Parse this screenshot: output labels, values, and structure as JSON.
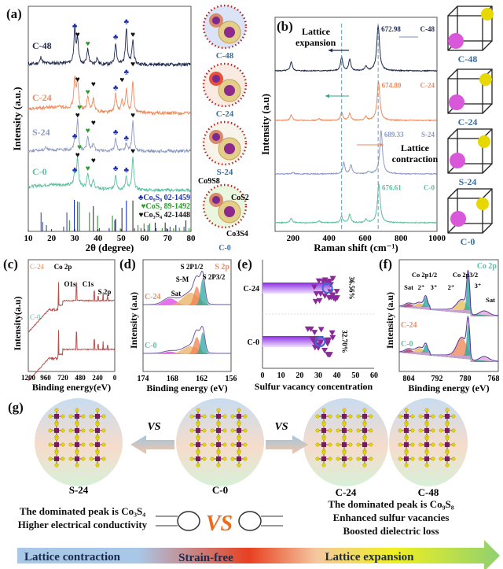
{
  "panels": {
    "a": "(a)",
    "b": "(b)",
    "c": "(c)",
    "d": "(d)",
    "e": "(e)",
    "f": "(f)",
    "g": "(g)"
  },
  "colors": {
    "C-48": "#1f2a4d",
    "C-24": "#ee8a5c",
    "S-24": "#8c9bc4",
    "C-0": "#5cbfa0",
    "co9s8": "#1a2fb0",
    "cos2": "#2a9a2a",
    "co3s4": "#111111",
    "xps_survey": "#b5524f",
    "magenta": "#e040e0",
    "orange": "#f0a060",
    "teal": "#2aa8a0",
    "yellow_atom": "#e6d800",
    "pink_atom": "#d957d9"
  },
  "side_a": {
    "labels": [
      "C-48",
      "C-24",
      "S-24",
      "C-0"
    ],
    "phase_labels": [
      "Co9S8",
      "CoS2",
      "Co3S4"
    ]
  },
  "side_b": {
    "labels": [
      "C-48",
      "C-24",
      "S-24",
      "C-0"
    ]
  },
  "chart_data": [
    {
      "id": "a",
      "type": "line",
      "title": "",
      "xlabel": "2θ (degree)",
      "ylabel": "Intensity (a.u.)",
      "xlim": [
        10,
        80
      ],
      "xticks": [
        10,
        20,
        30,
        40,
        50,
        60,
        70,
        80
      ],
      "series": [
        {
          "name": "C-48",
          "offset": 3,
          "peaks": [
            [
              15.5,
              0.15
            ],
            [
              30,
              0.75
            ],
            [
              31.2,
              0.55
            ],
            [
              35.6,
              0.35
            ],
            [
              39.6,
              0.15
            ],
            [
              47.6,
              0.5
            ],
            [
              52.2,
              0.85
            ],
            [
              55.0,
              0.55
            ]
          ]
        },
        {
          "name": "C-24",
          "offset": 2,
          "peaks": [
            [
              30,
              0.75
            ],
            [
              31.2,
              0.65
            ],
            [
              35.6,
              0.35
            ],
            [
              38,
              0.3
            ],
            [
              47.6,
              0.45
            ],
            [
              50.3,
              0.3
            ],
            [
              52.2,
              0.55
            ],
            [
              55.0,
              0.75
            ]
          ]
        },
        {
          "name": "S-24",
          "offset": 1,
          "peaks": [
            [
              17.5,
              0.1
            ],
            [
              30,
              0.25
            ],
            [
              31.2,
              0.8
            ],
            [
              35.6,
              0.4
            ],
            [
              38,
              0.2
            ],
            [
              47.6,
              0.35
            ],
            [
              52.2,
              0.2
            ],
            [
              55.0,
              0.8
            ]
          ]
        },
        {
          "name": "C-0",
          "offset": 0,
          "peaks": [
            [
              30,
              0.35
            ],
            [
              31.2,
              0.75
            ],
            [
              35.6,
              0.4
            ],
            [
              38,
              0.2
            ],
            [
              47.6,
              0.4
            ],
            [
              52.2,
              0.35
            ],
            [
              55.0,
              0.85
            ]
          ]
        }
      ],
      "legend": [
        {
          "symbol": "♣",
          "text": "Co₉S₈ 02-1459",
          "color": "#1a2fb0"
        },
        {
          "symbol": "♥",
          "text": "CoS₂ 89-1492",
          "color": "#2a9a2a"
        },
        {
          "symbol": "♥",
          "text": "Co₃S₄ 42-1448",
          "color": "#111111"
        }
      ],
      "reference_lines": [
        {
          "x": 15.5,
          "h": 0.6,
          "color": "#44507a"
        },
        {
          "x": 16.2,
          "h": 0.3,
          "color": "#44507a"
        },
        {
          "x": 17.8,
          "h": 0.2,
          "color": "#44507a"
        },
        {
          "x": 25.2,
          "h": 0.15,
          "color": "#44507a"
        },
        {
          "x": 26.6,
          "h": 0.6,
          "color": "#44507a"
        },
        {
          "x": 27.7,
          "h": 0.35,
          "color": "#2a9a2a"
        },
        {
          "x": 29.8,
          "h": 1.0,
          "color": "#1a2fb0"
        },
        {
          "x": 31.2,
          "h": 0.95,
          "color": "#44507a"
        },
        {
          "x": 32.0,
          "h": 0.93,
          "color": "#2a9a2a"
        },
        {
          "x": 36.3,
          "h": 0.6,
          "color": "#2a9a2a"
        },
        {
          "x": 38.0,
          "h": 0.8,
          "color": "#333333"
        },
        {
          "x": 39.8,
          "h": 0.5,
          "color": "#2a9a2a"
        },
        {
          "x": 40.6,
          "h": 0.1,
          "color": "#44507a"
        },
        {
          "x": 44.8,
          "h": 0.1,
          "color": "#1a2fb0"
        },
        {
          "x": 46.2,
          "h": 0.5,
          "color": "#2a9a2a"
        },
        {
          "x": 47.2,
          "h": 0.35,
          "color": "#44507a"
        },
        {
          "x": 47.6,
          "h": 0.4,
          "color": "#1a2fb0"
        },
        {
          "x": 50.3,
          "h": 0.75,
          "color": "#333333"
        },
        {
          "x": 49.6,
          "h": 0.1,
          "color": "#2a9a2a"
        },
        {
          "x": 52.2,
          "h": 0.98,
          "color": "#1a2fb0"
        },
        {
          "x": 55.0,
          "h": 0.98,
          "color": "#333333"
        },
        {
          "x": 55.7,
          "h": 0.1,
          "color": "#44507a"
        },
        {
          "x": 57.2,
          "h": 0.2,
          "color": "#2a9a2a"
        },
        {
          "x": 58.5,
          "h": 0.1,
          "color": "#44507a"
        },
        {
          "x": 59.8,
          "h": 0.25,
          "color": "#2a9a2a"
        },
        {
          "x": 61.5,
          "h": 0.2,
          "color": "#44507a"
        },
        {
          "x": 62.2,
          "h": 0.25,
          "color": "#2a9a2a"
        },
        {
          "x": 64.6,
          "h": 0.28,
          "color": "#333333"
        },
        {
          "x": 65.0,
          "h": 0.1,
          "color": "#44507a"
        },
        {
          "x": 67.6,
          "h": 0.1,
          "color": "#2a9a2a"
        },
        {
          "x": 68.9,
          "h": 0.28,
          "color": "#333333"
        },
        {
          "x": 69.5,
          "h": 0.1,
          "color": "#1a2fb0"
        },
        {
          "x": 71.0,
          "h": 0.15,
          "color": "#44507a"
        },
        {
          "x": 72.5,
          "h": 0.1,
          "color": "#2a9a2a"
        },
        {
          "x": 73.5,
          "h": 0.2,
          "color": "#1a2fb0"
        },
        {
          "x": 75.0,
          "h": 0.12,
          "color": "#2a9a2a"
        },
        {
          "x": 77.0,
          "h": 0.15,
          "color": "#44507a"
        },
        {
          "x": 77.8,
          "h": 0.35,
          "color": "#333333"
        },
        {
          "x": 79.2,
          "h": 0.1,
          "color": "#2a9a2a"
        }
      ],
      "markers": [
        {
          "series": "C-48",
          "x": 30,
          "symbol": "♣",
          "color": "#1a2fb0"
        },
        {
          "series": "C-48",
          "x": 31.2,
          "symbol": "♥",
          "color": "#111111"
        },
        {
          "series": "C-48",
          "x": 35.6,
          "symbol": "♥",
          "color": "#2a9a2a"
        },
        {
          "series": "C-48",
          "x": 47.6,
          "symbol": "♣",
          "color": "#1a2fb0"
        },
        {
          "series": "C-48",
          "x": 52.2,
          "symbol": "♣",
          "color": "#1a2fb0"
        },
        {
          "series": "C-48",
          "x": 55.0,
          "symbol": "♥",
          "color": "#111111"
        },
        {
          "series": "C-24",
          "x": 31.2,
          "symbol": "♥",
          "color": "#111111"
        },
        {
          "series": "C-24",
          "x": 35.6,
          "symbol": "♥",
          "color": "#2a9a2a"
        },
        {
          "series": "C-24",
          "x": 38,
          "symbol": "♥",
          "color": "#111111"
        },
        {
          "series": "C-24",
          "x": 47.6,
          "symbol": "♣",
          "color": "#1a2fb0"
        },
        {
          "series": "C-24",
          "x": 50.3,
          "symbol": "♥",
          "color": "#111111"
        },
        {
          "series": "C-24",
          "x": 52.2,
          "symbol": "♣",
          "color": "#1a2fb0"
        },
        {
          "series": "C-24",
          "x": 55.0,
          "symbol": "♥",
          "color": "#111111"
        },
        {
          "series": "S-24",
          "x": 30,
          "symbol": "♣",
          "color": "#1a2fb0"
        },
        {
          "series": "S-24",
          "x": 31.2,
          "symbol": "♥",
          "color": "#111111"
        },
        {
          "series": "S-24",
          "x": 32,
          "symbol": "♥",
          "color": "#2a9a2a"
        },
        {
          "series": "S-24",
          "x": 35.6,
          "symbol": "♥",
          "color": "#2a9a2a"
        },
        {
          "series": "S-24",
          "x": 38,
          "symbol": "♥",
          "color": "#111111"
        },
        {
          "series": "S-24",
          "x": 47.6,
          "symbol": "♣",
          "color": "#1a2fb0"
        },
        {
          "series": "S-24",
          "x": 52.2,
          "symbol": "♣",
          "color": "#1a2fb0"
        },
        {
          "series": "S-24",
          "x": 55.0,
          "symbol": "♥",
          "color": "#111111"
        },
        {
          "series": "C-0",
          "x": 30,
          "symbol": "♣",
          "color": "#1a2fb0"
        },
        {
          "series": "C-0",
          "x": 31.2,
          "symbol": "♥",
          "color": "#111111"
        },
        {
          "series": "C-0",
          "x": 32,
          "symbol": "♥",
          "color": "#2a9a2a"
        },
        {
          "series": "C-0",
          "x": 35.6,
          "symbol": "♥",
          "color": "#2a9a2a"
        },
        {
          "series": "C-0",
          "x": 38,
          "symbol": "♥",
          "color": "#111111"
        },
        {
          "series": "C-0",
          "x": 47.6,
          "symbol": "♣",
          "color": "#1a2fb0"
        },
        {
          "series": "C-0",
          "x": 52.2,
          "symbol": "♣",
          "color": "#1a2fb0"
        },
        {
          "series": "C-0",
          "x": 55.0,
          "symbol": "♥",
          "color": "#111111"
        }
      ]
    },
    {
      "id": "b",
      "type": "line",
      "xlabel": "Raman shift (cm⁻¹)",
      "ylabel": "Intensity (a.u)",
      "xlim": [
        100,
        1000
      ],
      "xticks": [
        200,
        400,
        600,
        800,
        1000
      ],
      "dashed_lines_x": [
        470,
        672.98
      ],
      "series": [
        {
          "name": "C-48",
          "offset": 3,
          "peak_label": "672.98",
          "peaks": [
            [
              190,
              0.2
            ],
            [
              470,
              0.3
            ],
            [
              515,
              0.25
            ],
            [
              605,
              0.1
            ],
            [
              672.98,
              1.0
            ]
          ]
        },
        {
          "name": "C-24",
          "offset": 2,
          "peak_label": "674.80",
          "peaks": [
            [
              190,
              0.12
            ],
            [
              345,
              0.04
            ],
            [
              470,
              0.18
            ],
            [
              515,
              0.15
            ],
            [
              605,
              0.08
            ],
            [
              674.8,
              0.85
            ]
          ]
        },
        {
          "name": "S-24",
          "offset": 1,
          "peak_label": "689.33",
          "peaks": [
            [
              200,
              0.03
            ],
            [
              482,
              0.25
            ],
            [
              522,
              0.2
            ],
            [
              620,
              0.05
            ],
            [
              689.33,
              0.95
            ]
          ]
        },
        {
          "name": "C-0",
          "offset": 0,
          "peak_label": "676.61",
          "peaks": [
            [
              190,
              0.1
            ],
            [
              345,
              0.04
            ],
            [
              470,
              0.14
            ],
            [
              515,
              0.18
            ],
            [
              605,
              0.07
            ],
            [
              676.61,
              0.85
            ]
          ]
        }
      ],
      "annotations": [
        {
          "text": "Lattice expansion",
          "arrow": "left"
        },
        {
          "text": "Lattice contraction",
          "arrow": "right"
        }
      ]
    },
    {
      "id": "c",
      "type": "line",
      "xlabel": "Binding energy(eV)",
      "ylabel": "Intensity(a.u)",
      "xlim": [
        1200,
        0
      ],
      "xticks": [
        1200,
        960,
        720,
        480,
        240,
        0
      ],
      "series": [
        {
          "name": "C-24"
        },
        {
          "name": "C-0"
        }
      ],
      "peak_labels": [
        {
          "text": "Co 2p",
          "x": 780
        },
        {
          "text": "O1s",
          "x": 531
        },
        {
          "text": "C1s",
          "x": 285
        },
        {
          "text": "S 2p",
          "x": 163
        }
      ]
    },
    {
      "id": "d",
      "type": "area",
      "title": "S 2p",
      "xlabel": "Binding energy (eV)",
      "ylabel": "Intensity (a.u)",
      "xlim": [
        174,
        156
      ],
      "xticks": [
        174,
        168,
        162,
        156
      ],
      "series": [
        {
          "name": "C-24"
        },
        {
          "name": "C-0"
        }
      ],
      "components": [
        {
          "name": "Sat",
          "center": 168.5,
          "color": "#e040e0"
        },
        {
          "name": "S-M",
          "center": 164.3,
          "color": "#e8b060"
        },
        {
          "name": "S 2P1/2",
          "center": 163.0,
          "color": "#f08050"
        },
        {
          "name": "S 2P3/2",
          "center": 161.8,
          "color": "#2aa8a0"
        }
      ]
    },
    {
      "id": "e",
      "type": "bar",
      "orientation": "horizontal",
      "xlabel": "Sulfur vacancy concentration",
      "ylabel": "",
      "xlim": [
        0,
        60
      ],
      "xticks": [
        0,
        10,
        20,
        30,
        40,
        50,
        60
      ],
      "categories": [
        "C-24",
        "C-0"
      ],
      "values": [
        36.56,
        32.7
      ],
      "value_labels": [
        "36.56%",
        "32.70%"
      ]
    },
    {
      "id": "f",
      "type": "area",
      "title": "Co 2p",
      "xlabel": "Binding energy (eV)",
      "ylabel": "Intensity (a.u)",
      "xlim": [
        808,
        766
      ],
      "xticks": [
        804,
        792,
        780,
        768
      ],
      "series": [
        {
          "name": "C-24"
        },
        {
          "name": "C-0"
        }
      ],
      "annotations": [
        "Sat",
        "2⁺",
        "3⁺",
        "Co 2p1/2",
        "2⁺",
        "Co 2p3/2",
        "3⁺",
        "Sat"
      ]
    }
  ],
  "g": {
    "structures": [
      "S-24",
      "C-0",
      "C-24",
      "C-48"
    ],
    "vs_label": "VS",
    "left_desc": [
      "The dominated peak is Co₃S₄",
      "Higher electrical conductivity"
    ],
    "right_desc": [
      "The dominated peak is Co₉S₈",
      "Enhanced sulfur vacancies",
      "Boosted dielectric loss"
    ],
    "bar_labels": [
      "Lattice contraction",
      "Strain-free",
      "Lattice expansion"
    ]
  }
}
